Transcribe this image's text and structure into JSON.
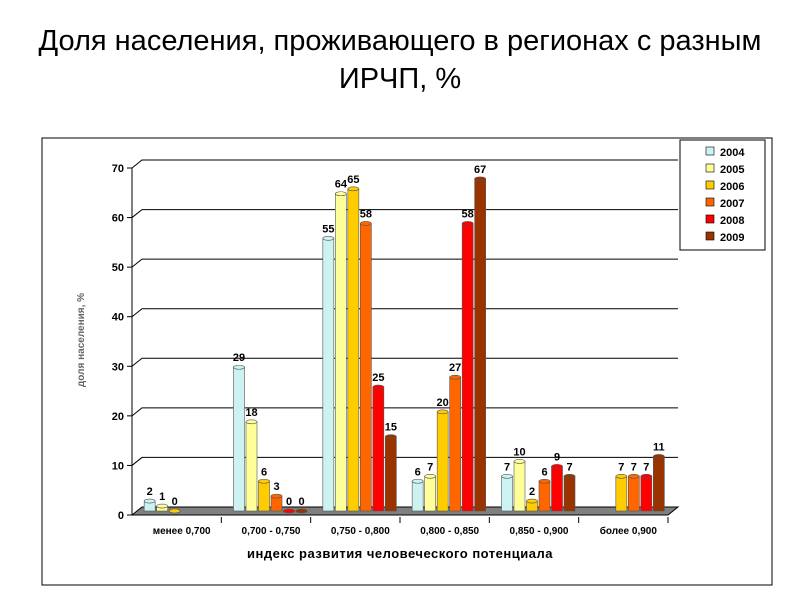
{
  "chart_data": {
    "type": "bar",
    "title": "Доля населения, проживающего в регионах с разным ИРЧП, %",
    "xlabel": "индекс развития человеческого потенциала",
    "ylabel": "доля населения, %",
    "ylim": [
      0,
      70
    ],
    "yticks": [
      0,
      10,
      20,
      30,
      40,
      50,
      60,
      70
    ],
    "categories": [
      "менее 0,700",
      "0,700 - 0,750",
      "0,750 - 0,800",
      "0,800 - 0,850",
      "0,850 - 0,900",
      "более 0,900"
    ],
    "series": [
      {
        "name": "2004",
        "color": "#CCF2F2",
        "values": [
          2,
          29,
          55,
          6,
          7,
          null
        ]
      },
      {
        "name": "2005",
        "color": "#FFFF99",
        "values": [
          1,
          18,
          64,
          7,
          10,
          null
        ]
      },
      {
        "name": "2006",
        "color": "#FFCC00",
        "values": [
          0,
          6,
          65,
          20,
          2,
          7
        ]
      },
      {
        "name": "2007",
        "color": "#FF6600",
        "values": [
          null,
          3,
          58,
          27,
          6,
          7
        ]
      },
      {
        "name": "2008",
        "color": "#FF0000",
        "values": [
          null,
          0,
          25,
          58,
          9,
          7
        ]
      },
      {
        "name": "2009",
        "color": "#993300",
        "values": [
          null,
          0,
          15,
          67,
          7,
          11
        ]
      }
    ],
    "grid": true,
    "legend": "top-right"
  }
}
